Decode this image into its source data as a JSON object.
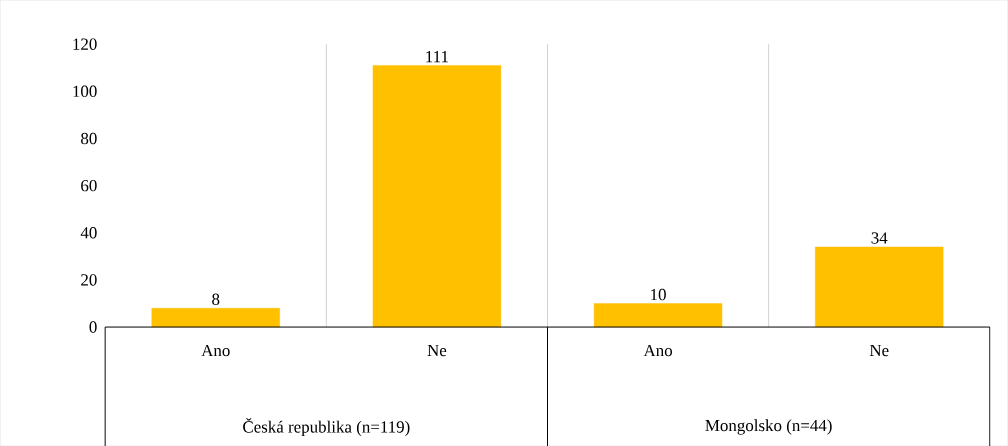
{
  "chart_data": {
    "type": "bar",
    "categories": [
      "Ano",
      "Ne",
      "Ano",
      "Ne"
    ],
    "values": [
      8,
      111,
      10,
      34
    ],
    "color": "#ffc000",
    "ylim": [
      0,
      120
    ],
    "yticks": [
      0,
      20,
      40,
      60,
      80,
      100,
      120
    ],
    "grid": "x",
    "data_labels": true,
    "annotations": [
      "Česká republika (n=119)",
      "Mongolsko (n=44)"
    ]
  }
}
